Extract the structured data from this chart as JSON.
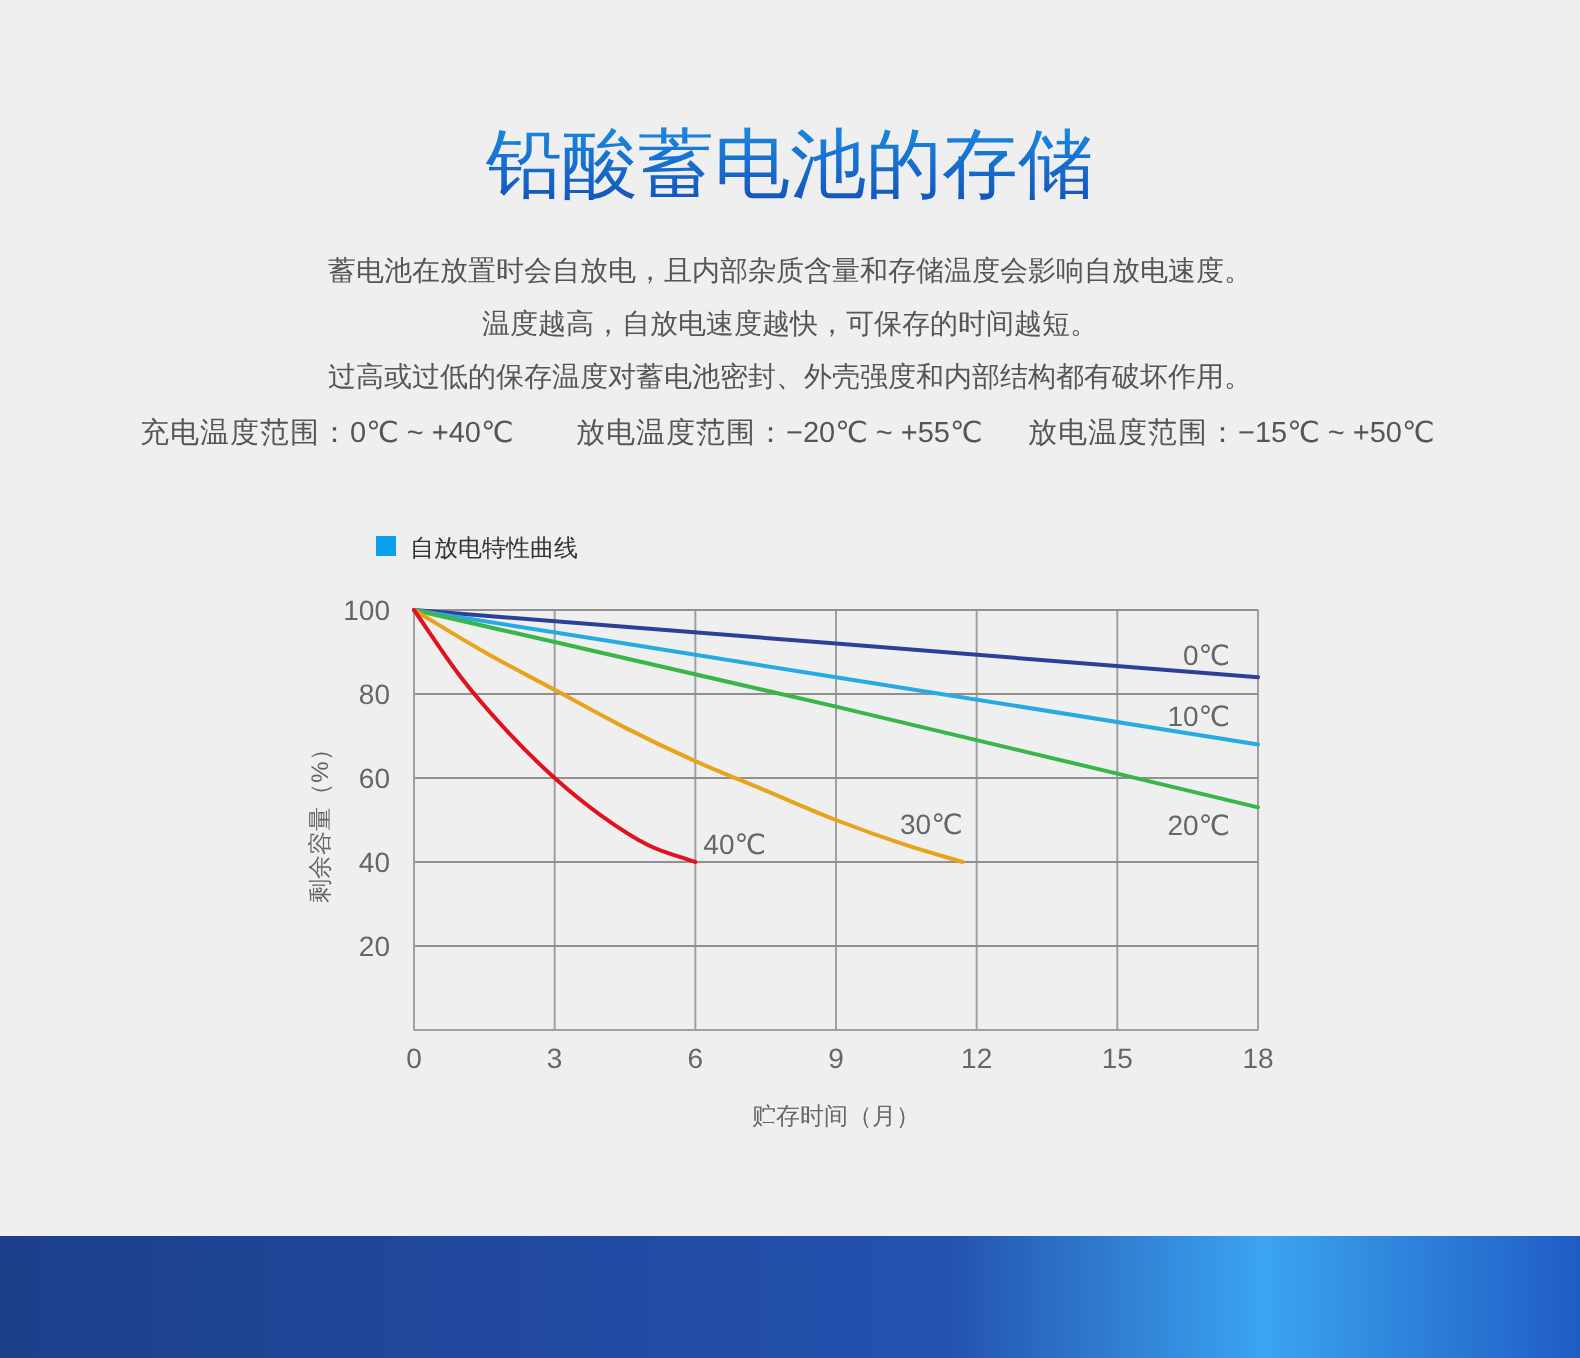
{
  "chart_data": {
    "type": "line",
    "title": "铅酸蓄电池的存储",
    "subtitle": "自放电特性曲线",
    "annotations": [
      "蓄电池在放置时会自放电，且内部杂质含量和存储温度会影响自放电速度。",
      "温度越高，自放电速度越快，可保存的时间越短。",
      "过高或过低的保存温度对蓄电池密封、外壳强度和内部结构都有破坏作用。",
      "充电温度范围：0℃ ~ +40℃",
      "放电温度范围：−20℃ ~ +55℃",
      "放电温度范围：−15℃ ~ +50℃"
    ],
    "xlabel": "贮存时间（月）",
    "ylabel": "剩余容量（%）",
    "xlim": [
      0,
      18
    ],
    "ylim": [
      0,
      100
    ],
    "xticks": [
      0,
      3,
      6,
      9,
      12,
      15,
      18
    ],
    "yticks": [
      20,
      40,
      60,
      80,
      100
    ],
    "grid": true,
    "line_style": "solid",
    "series": [
      {
        "name": "0℃",
        "color": "#2e3f98",
        "x": [
          0,
          9,
          18
        ],
        "values": [
          100,
          92,
          84
        ]
      },
      {
        "name": "10℃",
        "color": "#27aae1",
        "x": [
          0,
          9,
          18
        ],
        "values": [
          100,
          84,
          68
        ]
      },
      {
        "name": "20℃",
        "color": "#3ab54a",
        "x": [
          0,
          9,
          18
        ],
        "values": [
          100,
          77,
          53
        ]
      },
      {
        "name": "30℃",
        "color": "#e8a21c",
        "x": [
          0,
          1.5,
          3,
          4.5,
          6,
          7.5,
          9,
          10.5,
          11.7
        ],
        "values": [
          100,
          90,
          81,
          72,
          64,
          57,
          50,
          44,
          40
        ]
      },
      {
        "name": "40℃",
        "color": "#e1121e",
        "x": [
          0,
          1,
          2,
          3,
          4,
          5,
          6
        ],
        "values": [
          100,
          84,
          71,
          60,
          51,
          44,
          40
        ]
      }
    ]
  }
}
